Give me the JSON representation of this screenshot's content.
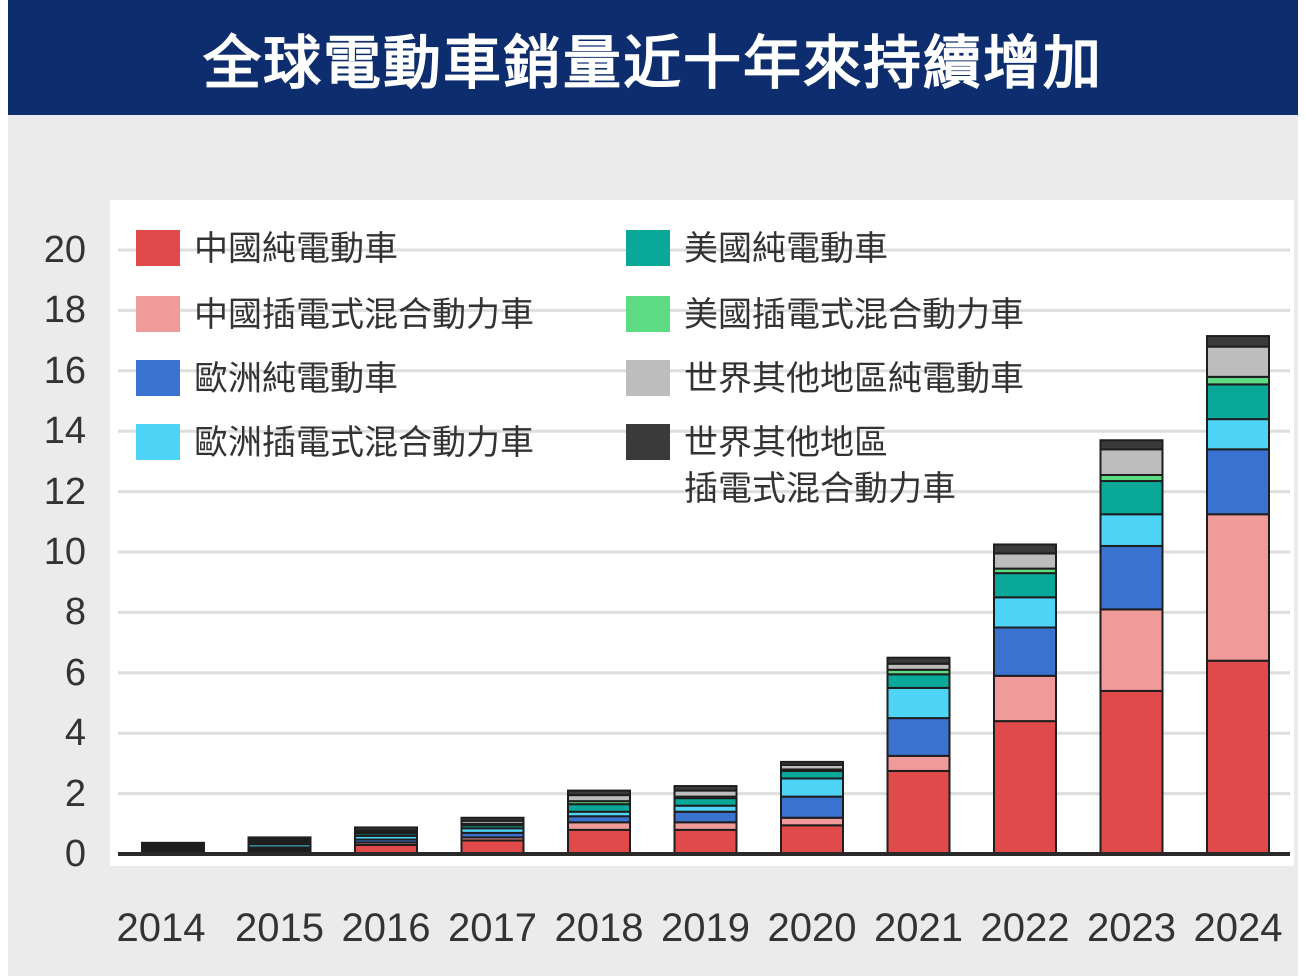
{
  "title": "全球電動車銷量近十年來持續增加",
  "chart_data": {
    "type": "bar",
    "stacked": true,
    "categories": [
      "2014",
      "2015",
      "2016",
      "2017",
      "2018",
      "2019",
      "2020",
      "2021",
      "2022",
      "2023",
      "2024"
    ],
    "ylim": [
      0,
      20
    ],
    "yticks": [
      "0",
      "2",
      "4",
      "6",
      "8",
      "10",
      "12",
      "14",
      "16",
      "18",
      "20"
    ],
    "grid": true,
    "legend_position": "top-left",
    "series": [
      {
        "name": "中國純電動車",
        "color": "#e04a4a",
        "values": [
          0.05,
          0.1,
          0.3,
          0.45,
          0.8,
          0.8,
          0.95,
          2.75,
          4.4,
          5.4,
          6.4
        ]
      },
      {
        "name": "中國插電式混合動力車",
        "color": "#f09a9a",
        "values": [
          0.02,
          0.05,
          0.08,
          0.1,
          0.25,
          0.25,
          0.25,
          0.5,
          1.5,
          2.7,
          4.85
        ]
      },
      {
        "name": "歐洲純電動車",
        "color": "#3a72d0",
        "values": [
          0.05,
          0.07,
          0.1,
          0.15,
          0.2,
          0.35,
          0.7,
          1.25,
          1.6,
          2.1,
          2.15
        ]
      },
      {
        "name": "歐洲插電式混合動力車",
        "color": "#4dd4f7",
        "values": [
          0.04,
          0.1,
          0.12,
          0.15,
          0.15,
          0.2,
          0.6,
          1.0,
          1.0,
          1.05,
          1.0
        ]
      },
      {
        "name": "美國純電動車",
        "color": "#0aa898",
        "values": [
          0.06,
          0.06,
          0.08,
          0.1,
          0.25,
          0.25,
          0.25,
          0.45,
          0.8,
          1.1,
          1.15
        ]
      },
      {
        "name": "美國插電式混合動力車",
        "color": "#5ddc84",
        "values": [
          0.05,
          0.05,
          0.05,
          0.05,
          0.1,
          0.05,
          0.05,
          0.15,
          0.15,
          0.2,
          0.25
        ]
      },
      {
        "name": "世界其他地區純電動車",
        "color": "#bdbdbd",
        "values": [
          0.05,
          0.05,
          0.05,
          0.1,
          0.2,
          0.2,
          0.15,
          0.2,
          0.5,
          0.85,
          1.0
        ]
      },
      {
        "name": "世界其他地區\n插電式混合動力車",
        "color": "#3a3a3a",
        "values": [
          0.05,
          0.07,
          0.1,
          0.1,
          0.15,
          0.15,
          0.1,
          0.2,
          0.3,
          0.3,
          0.35
        ]
      }
    ]
  }
}
